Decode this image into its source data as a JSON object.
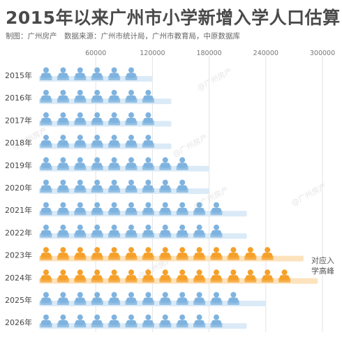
{
  "title": "2015年以来广州市小学新增入学人口估算",
  "subtitle": "制图：广州房产　数据来源：广州市统计局，广州市教育局，中原数据库",
  "watermark": "@广州房产",
  "annotation": "对应入学高峰",
  "colors": {
    "normal": "#7fb3df",
    "highlight": "#f5a02a",
    "band_normal": "#dbeaf7",
    "band_highlight": "#fde3bd",
    "grid": "#e3e3e3",
    "text": "#444444"
  },
  "chart_data": {
    "type": "bar",
    "title": "2015年以来广州市小学新增入学人口估算",
    "subtitle": "制图：广州房产　数据来源：广州市统计局，广州市教育局，中原数据库",
    "orientation": "horizontal",
    "style": "pictograph",
    "unit_per_icon": 20000,
    "categories": [
      "2015年",
      "2016年",
      "2017年",
      "2018年",
      "2019年",
      "2020年",
      "2021年",
      "2022年",
      "2023年",
      "2024年",
      "2025年",
      "2026年"
    ],
    "values": [
      120000,
      140000,
      140000,
      140000,
      180000,
      180000,
      220000,
      220000,
      280000,
      295000,
      240000,
      220000
    ],
    "highlight": [
      "2023年",
      "2024年"
    ],
    "xlim": [
      0,
      300000
    ],
    "xticks": [
      60000,
      120000,
      180000,
      240000,
      300000
    ],
    "xtick_labels": [
      "60000",
      "120000",
      "180000",
      "240000",
      "300000"
    ],
    "grid": true,
    "annotation": "对应入学高峰"
  }
}
